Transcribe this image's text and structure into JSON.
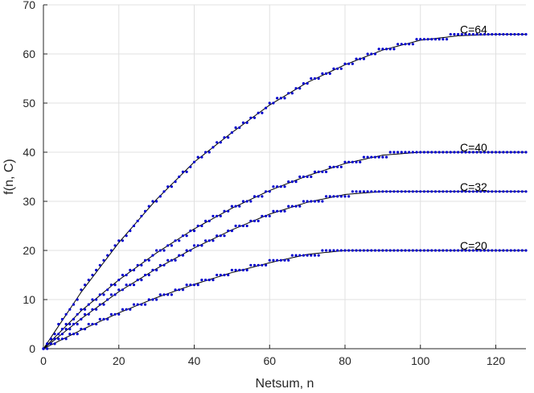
{
  "chart_data": {
    "type": "scatter",
    "title": "",
    "xlabel": "Netsum, n",
    "ylabel": "f(n, C)",
    "xlim": [
      0,
      128
    ],
    "ylim": [
      0,
      70
    ],
    "xticks": [
      0,
      20,
      40,
      60,
      80,
      100,
      120
    ],
    "yticks": [
      0,
      10,
      20,
      30,
      40,
      50,
      60,
      70
    ],
    "grid": true,
    "colors": {
      "line": "#000000",
      "points": "#0000cc",
      "grid": "#e0e0e0",
      "axis": "#262626"
    },
    "series": [
      {
        "name": "C=64",
        "C": 64,
        "label": "C=64",
        "saturation_n": 128,
        "x": [
          0,
          10,
          20,
          30,
          40,
          50,
          60,
          70,
          80,
          90,
          100,
          110,
          120,
          128
        ],
        "y": [
          0,
          11.5,
          21.6,
          30.4,
          38.0,
          44.0,
          49.6,
          54.2,
          57.8,
          60.8,
          62.8,
          63.7,
          64.0,
          64.0
        ]
      },
      {
        "name": "C=40",
        "C": 40,
        "label": "C=40",
        "saturation_n": 96,
        "x": [
          0,
          10,
          20,
          30,
          40,
          50,
          60,
          70,
          80,
          90,
          100,
          110,
          120,
          128
        ],
        "y": [
          0,
          7.7,
          14.0,
          19.5,
          24.4,
          28.6,
          32.2,
          35.2,
          37.7,
          39.4,
          40.0,
          40.0,
          40.0,
          40.0
        ]
      },
      {
        "name": "C=32",
        "C": 32,
        "label": "C=32",
        "saturation_n": 85,
        "x": [
          0,
          10,
          20,
          30,
          40,
          50,
          60,
          70,
          80,
          90,
          100,
          110,
          120,
          128
        ],
        "y": [
          0,
          6.1,
          11.6,
          16.3,
          20.5,
          24.2,
          27.4,
          29.8,
          31.4,
          32.0,
          32.0,
          32.0,
          32.0,
          32.0
        ]
      },
      {
        "name": "C=20",
        "C": 20,
        "label": "C=20",
        "saturation_n": 72,
        "x": [
          0,
          10,
          20,
          30,
          40,
          50,
          60,
          70,
          80,
          90,
          100,
          110,
          120,
          128
        ],
        "y": [
          0,
          3.8,
          7.3,
          10.4,
          13.1,
          15.5,
          17.5,
          19.2,
          20.0,
          20.0,
          20.0,
          20.0,
          20.0,
          20.0
        ]
      }
    ]
  }
}
